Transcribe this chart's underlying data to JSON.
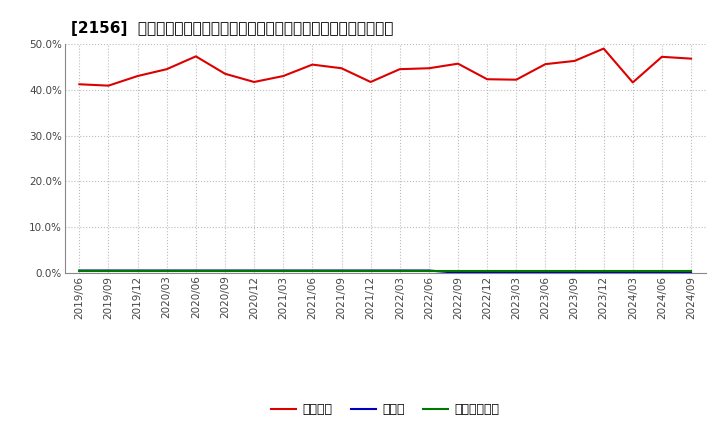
{
  "title": "[2156]  自己資本、のれん、繰延税金資産の総資産に対する比率の推移",
  "x_labels": [
    "2019/06",
    "2019/09",
    "2019/12",
    "2020/03",
    "2020/06",
    "2020/09",
    "2020/12",
    "2021/03",
    "2021/06",
    "2021/09",
    "2021/12",
    "2022/03",
    "2022/06",
    "2022/09",
    "2022/12",
    "2023/03",
    "2023/06",
    "2023/09",
    "2023/12",
    "2024/03",
    "2024/06",
    "2024/09"
  ],
  "jiko_shihon": [
    41.2,
    40.9,
    43.0,
    44.5,
    47.3,
    43.5,
    41.7,
    43.0,
    45.5,
    44.7,
    41.7,
    44.5,
    44.7,
    45.7,
    42.3,
    42.2,
    45.6,
    46.3,
    49.0,
    41.6,
    47.2,
    46.8
  ],
  "noren": [
    0.5,
    0.5,
    0.5,
    0.5,
    0.5,
    0.5,
    0.5,
    0.5,
    0.5,
    0.5,
    0.5,
    0.5,
    0.5,
    0.0,
    0.0,
    0.0,
    0.0,
    0.0,
    0.0,
    0.0,
    0.0,
    0.0
  ],
  "kurinobe_zekin": [
    0.3,
    0.3,
    0.3,
    0.3,
    0.3,
    0.3,
    0.3,
    0.3,
    0.3,
    0.3,
    0.3,
    0.3,
    0.3,
    0.3,
    0.3,
    0.3,
    0.3,
    0.3,
    0.3,
    0.3,
    0.3,
    0.3
  ],
  "ylim": [
    0.0,
    50.0
  ],
  "yticks": [
    0.0,
    10.0,
    20.0,
    30.0,
    40.0,
    50.0
  ],
  "line_color_jiko": "#dd0000",
  "line_color_noren": "#0000bb",
  "line_color_kurinobe": "#007700",
  "background_color": "#ffffff",
  "grid_color": "#bbbbbb",
  "title_fontsize": 11,
  "tick_fontsize": 7.5,
  "legend_labels": [
    "自己資本",
    "のれん",
    "繰延税金資産"
  ]
}
